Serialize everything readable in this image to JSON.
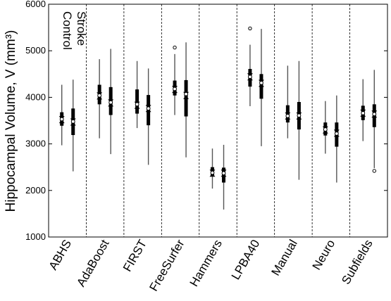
{
  "chart_data": {
    "type": "box",
    "title": "",
    "ylabel": "Hippocampal Volume, V (mm³)",
    "xlabel": "",
    "ylim": [
      1000,
      6000
    ],
    "yticks": [
      1000,
      2000,
      3000,
      4000,
      5000,
      6000
    ],
    "grid": false,
    "legend_labels": [
      "Control",
      "Stroke"
    ],
    "categories": [
      "ABHS",
      "AdaBoost",
      "FIRST",
      "FreeSurfer",
      "Hammers",
      "LPBA40",
      "Manual",
      "Neuro",
      "Subfields"
    ],
    "series": [
      {
        "name": "Control",
        "boxes": [
          {
            "whisker_low": 2970,
            "q1": 3390,
            "median": 3520,
            "q3": 3680,
            "whisker_high": 4270,
            "mean": 3530,
            "outliers": []
          },
          {
            "whisker_low": 3120,
            "q1": 3850,
            "median": 4030,
            "q3": 4270,
            "whisker_high": 4820,
            "mean": 4040,
            "outliers": []
          },
          {
            "whisker_low": 3340,
            "q1": 3650,
            "median": 3830,
            "q3": 4170,
            "whisker_high": 4780,
            "mean": 3850,
            "outliers": []
          },
          {
            "whisker_low": 3620,
            "q1": 4040,
            "median": 4170,
            "q3": 4360,
            "whisker_high": 4930,
            "mean": 4180,
            "outliers": [
              5070
            ]
          },
          {
            "whisker_low": 2040,
            "q1": 2300,
            "median": 2370,
            "q3": 2500,
            "whisker_high": 2900,
            "mean": 2380,
            "outliers": []
          },
          {
            "whisker_low": 3810,
            "q1": 4230,
            "median": 4440,
            "q3": 4610,
            "whisker_high": 5130,
            "mean": 4440,
            "outliers": [
              5480
            ]
          },
          {
            "whisker_low": 3120,
            "q1": 3460,
            "median": 3600,
            "q3": 3830,
            "whisker_high": 4680,
            "mean": 3600,
            "outliers": []
          },
          {
            "whisker_low": 2790,
            "q1": 3180,
            "median": 3300,
            "q3": 3460,
            "whisker_high": 3920,
            "mean": 3310,
            "outliers": []
          },
          {
            "whisker_low": 3060,
            "q1": 3510,
            "median": 3660,
            "q3": 3820,
            "whisker_high": 4390,
            "mean": 3660,
            "outliers": []
          }
        ]
      },
      {
        "name": "Stroke",
        "boxes": [
          {
            "whisker_low": 2410,
            "q1": 3190,
            "median": 3470,
            "q3": 3760,
            "whisker_high": 4380,
            "mean": 3480,
            "outliers": []
          },
          {
            "whisker_low": 2780,
            "q1": 3620,
            "median": 3880,
            "q3": 4220,
            "whisker_high": 5040,
            "mean": 3890,
            "outliers": []
          },
          {
            "whisker_low": 2550,
            "q1": 3400,
            "median": 3760,
            "q3": 4050,
            "whisker_high": 4620,
            "mean": 3760,
            "outliers": []
          },
          {
            "whisker_low": 2710,
            "q1": 3590,
            "median": 4040,
            "q3": 4370,
            "whisker_high": 5180,
            "mean": 4070,
            "outliers": []
          },
          {
            "whisker_low": 1590,
            "q1": 2170,
            "median": 2370,
            "q3": 2490,
            "whisker_high": 2980,
            "mean": 2370,
            "outliers": []
          },
          {
            "whisker_low": 2950,
            "q1": 3970,
            "median": 4300,
            "q3": 4500,
            "whisker_high": 5470,
            "mean": 4310,
            "outliers": []
          },
          {
            "whisker_low": 2230,
            "q1": 3310,
            "median": 3600,
            "q3": 3900,
            "whisker_high": 4780,
            "mean": 3610,
            "outliers": []
          },
          {
            "whisker_low": 2170,
            "q1": 2940,
            "median": 3230,
            "q3": 3460,
            "whisker_high": 4040,
            "mean": 3220,
            "outliers": []
          },
          {
            "whisker_low": 2480,
            "q1": 3360,
            "median": 3640,
            "q3": 3850,
            "whisker_high": 4590,
            "mean": 3640,
            "outliers": [
              2420
            ]
          }
        ]
      }
    ]
  }
}
